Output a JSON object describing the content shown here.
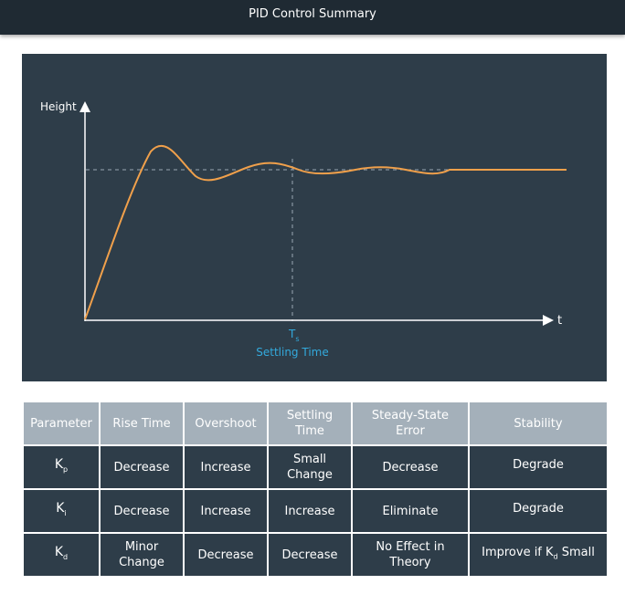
{
  "header": {
    "title": "PID Control Summary"
  },
  "diagram": {
    "y_axis_label": "Height",
    "x_axis_label": "t",
    "settling_symbol": "T",
    "settling_symbol_sub": "s",
    "settling_caption": "Settling Time",
    "colors": {
      "background": "#2e3d49",
      "response_curve": "#f0a04b",
      "setpoint_line": "#9aa7b2",
      "settling_label": "#33aadd",
      "axes": "#ffffff"
    }
  },
  "table": {
    "headers": [
      "Parameter",
      "Rise Time",
      "Overshoot",
      "Settling Time",
      "Steady-State Error",
      "Stability"
    ],
    "rows": [
      {
        "param": "K",
        "param_sub": "p",
        "rise": "Decrease",
        "overshoot": "Increase",
        "settling": "Small Change",
        "error": "Decrease",
        "stability": "Degrade",
        "stability_sub": "",
        "stability_tail": ""
      },
      {
        "param": "K",
        "param_sub": "i",
        "rise": "Decrease",
        "overshoot": "Increase",
        "settling": "Increase",
        "error": "Eliminate",
        "stability": "Degrade",
        "stability_sub": "",
        "stability_tail": ""
      },
      {
        "param": "K",
        "param_sub": "d",
        "rise": "Minor Change",
        "overshoot": "Decrease",
        "settling": "Decrease",
        "error": "No Effect in Theory",
        "stability": "Improve if K",
        "stability_sub": "d",
        "stability_tail": " Small"
      }
    ],
    "colors": {
      "header_bg": "#a4b0ba",
      "cell_bg": "#2e3d49",
      "text": "#ffffff"
    }
  }
}
